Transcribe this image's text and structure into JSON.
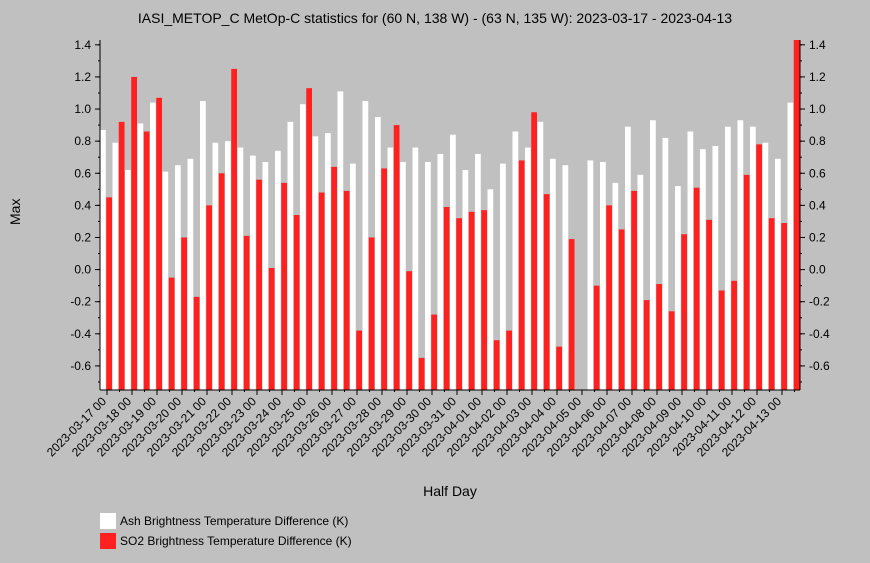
{
  "chart_data": {
    "type": "bar",
    "title": "IASI_METOP_C MetOp-C statistics for (60 N, 138 W) - (63 N, 135 W): 2023-03-17 - 2023-04-13",
    "xlabel": "Half Day",
    "ylabel": "Max",
    "ylim": [
      -0.75,
      1.43
    ],
    "yticks": [
      -0.6,
      -0.4,
      -0.2,
      0.0,
      0.2,
      0.4,
      0.6,
      0.8,
      1.0,
      1.2,
      1.4
    ],
    "ytick_labels": [
      "-0.6",
      "-0.4",
      "-0.2",
      "0.0",
      "0.2",
      "0.4",
      "0.6",
      "0.8",
      "1.0",
      "1.2",
      "1.4"
    ],
    "x_tick_labels": [
      "2023-03-17 00",
      "2023-03-18 00",
      "2023-03-19 00",
      "2023-03-20 00",
      "2023-03-21 00",
      "2023-03-22 00",
      "2023-03-23 00",
      "2023-03-24 00",
      "2023-03-25 00",
      "2023-03-26 00",
      "2023-03-27 00",
      "2023-03-28 00",
      "2023-03-29 00",
      "2023-03-30 00",
      "2023-03-31 00",
      "2023-04-01 00",
      "2023-04-02 00",
      "2023-04-03 00",
      "2023-04-04 00",
      "2023-04-05 00",
      "2023-04-06 00",
      "2023-04-07 00",
      "2023-04-08 00",
      "2023-04-09 00",
      "2023-04-10 00",
      "2023-04-11 00",
      "2023-04-12 00",
      "2023-04-13 00"
    ],
    "legend_position": "bottom-left",
    "series": [
      {
        "name": "Ash Brightness Temperature Difference (K)",
        "color": "#ffffff",
        "values": [
          0.87,
          0.79,
          0.62,
          0.91,
          1.04,
          0.61,
          0.65,
          0.69,
          1.05,
          0.79,
          0.8,
          0.76,
          0.71,
          0.67,
          0.74,
          0.92,
          1.03,
          0.83,
          0.85,
          1.11,
          0.66,
          1.05,
          0.95,
          0.76,
          0.67,
          0.76,
          0.67,
          0.72,
          0.84,
          0.62,
          0.72,
          0.5,
          0.66,
          0.86,
          0.76,
          0.92,
          0.69,
          0.65,
          null,
          0.68,
          0.67,
          0.54,
          0.89,
          0.59,
          0.93,
          0.82,
          0.52,
          0.86,
          0.75,
          0.77,
          0.89,
          0.93,
          0.89,
          0.79,
          0.69,
          1.04
        ]
      },
      {
        "name": "SO2 Brightness Temperature Difference (K)",
        "color": "#ff2020",
        "values": [
          0.45,
          0.92,
          1.2,
          0.86,
          1.07,
          -0.05,
          0.2,
          -0.17,
          0.4,
          0.6,
          1.25,
          0.21,
          0.56,
          0.01,
          0.54,
          0.34,
          1.13,
          0.48,
          0.64,
          0.49,
          -0.38,
          0.2,
          0.63,
          0.9,
          -0.01,
          -0.55,
          -0.28,
          0.39,
          0.32,
          0.36,
          0.37,
          -0.44,
          -0.38,
          0.68,
          0.98,
          0.47,
          -0.48,
          0.19,
          null,
          -0.1,
          0.4,
          0.25,
          0.49,
          -0.19,
          -0.09,
          -0.26,
          0.22,
          0.51,
          0.31,
          -0.13,
          -0.07,
          0.59,
          0.78,
          0.32,
          0.29,
          1.43
        ]
      }
    ]
  }
}
